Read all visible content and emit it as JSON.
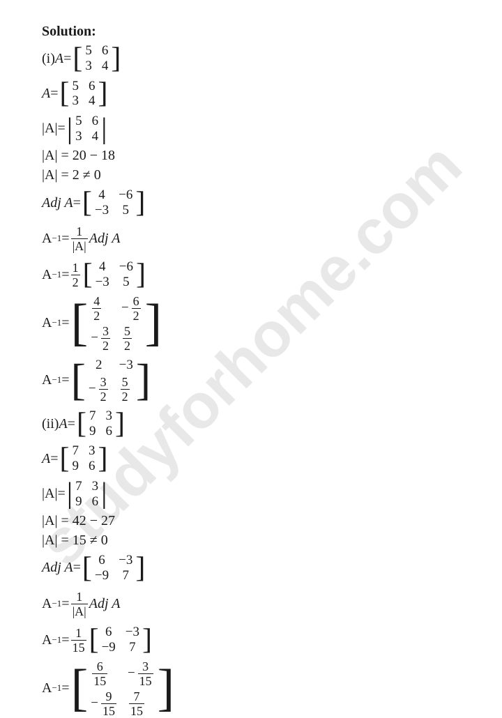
{
  "watermark": "studyforhome.com",
  "heading": "Solution:",
  "p1": {
    "label_i": "(i) ",
    "A": "A",
    "eq": " = ",
    "m1": [
      "5",
      "6",
      "3",
      "4"
    ],
    "det_label": "|A|",
    "det_expand": "|A| = 20 − 18",
    "det_val": "|A| = 2 ≠ 0",
    "adj_label": "Adj A",
    "adj": [
      "4",
      "−6",
      "−3",
      "5"
    ],
    "inv_label": "A",
    "inv_sup": "−1",
    "inv_formula_frac_num": "1",
    "inv_formula_frac_den": "|A|",
    "inv_formula_tail": " Adj A",
    "half_num": "1",
    "half_den": "2",
    "step_mat": [
      "4",
      "−6",
      "−3",
      "5"
    ],
    "frac_mat": [
      {
        "num": "4",
        "den": "2",
        "neg": false
      },
      {
        "num": "6",
        "den": "2",
        "neg": true
      },
      {
        "num": "3",
        "den": "2",
        "neg": true
      },
      {
        "num": "5",
        "den": "2",
        "neg": false
      }
    ],
    "final_mat_top": [
      "2",
      "−3"
    ],
    "final_mat_bot": [
      {
        "num": "3",
        "den": "2",
        "neg": true
      },
      {
        "num": "5",
        "den": "2",
        "neg": false
      }
    ]
  },
  "p2": {
    "label_ii": "(ii) ",
    "m1": [
      "7",
      "3",
      "9",
      "6"
    ],
    "det_expand": "|A| = 42 − 27",
    "det_val": "|A| = 15 ≠ 0",
    "adj": [
      "6",
      "−3",
      "−9",
      "7"
    ],
    "scalar_num": "1",
    "scalar_den": "15",
    "frac_mat": [
      {
        "num": "6",
        "den": "15",
        "neg": false
      },
      {
        "num": "3",
        "den": "15",
        "neg": true
      },
      {
        "num": "9",
        "den": "15",
        "neg": true
      },
      {
        "num": "7",
        "den": "15",
        "neg": false
      }
    ]
  }
}
